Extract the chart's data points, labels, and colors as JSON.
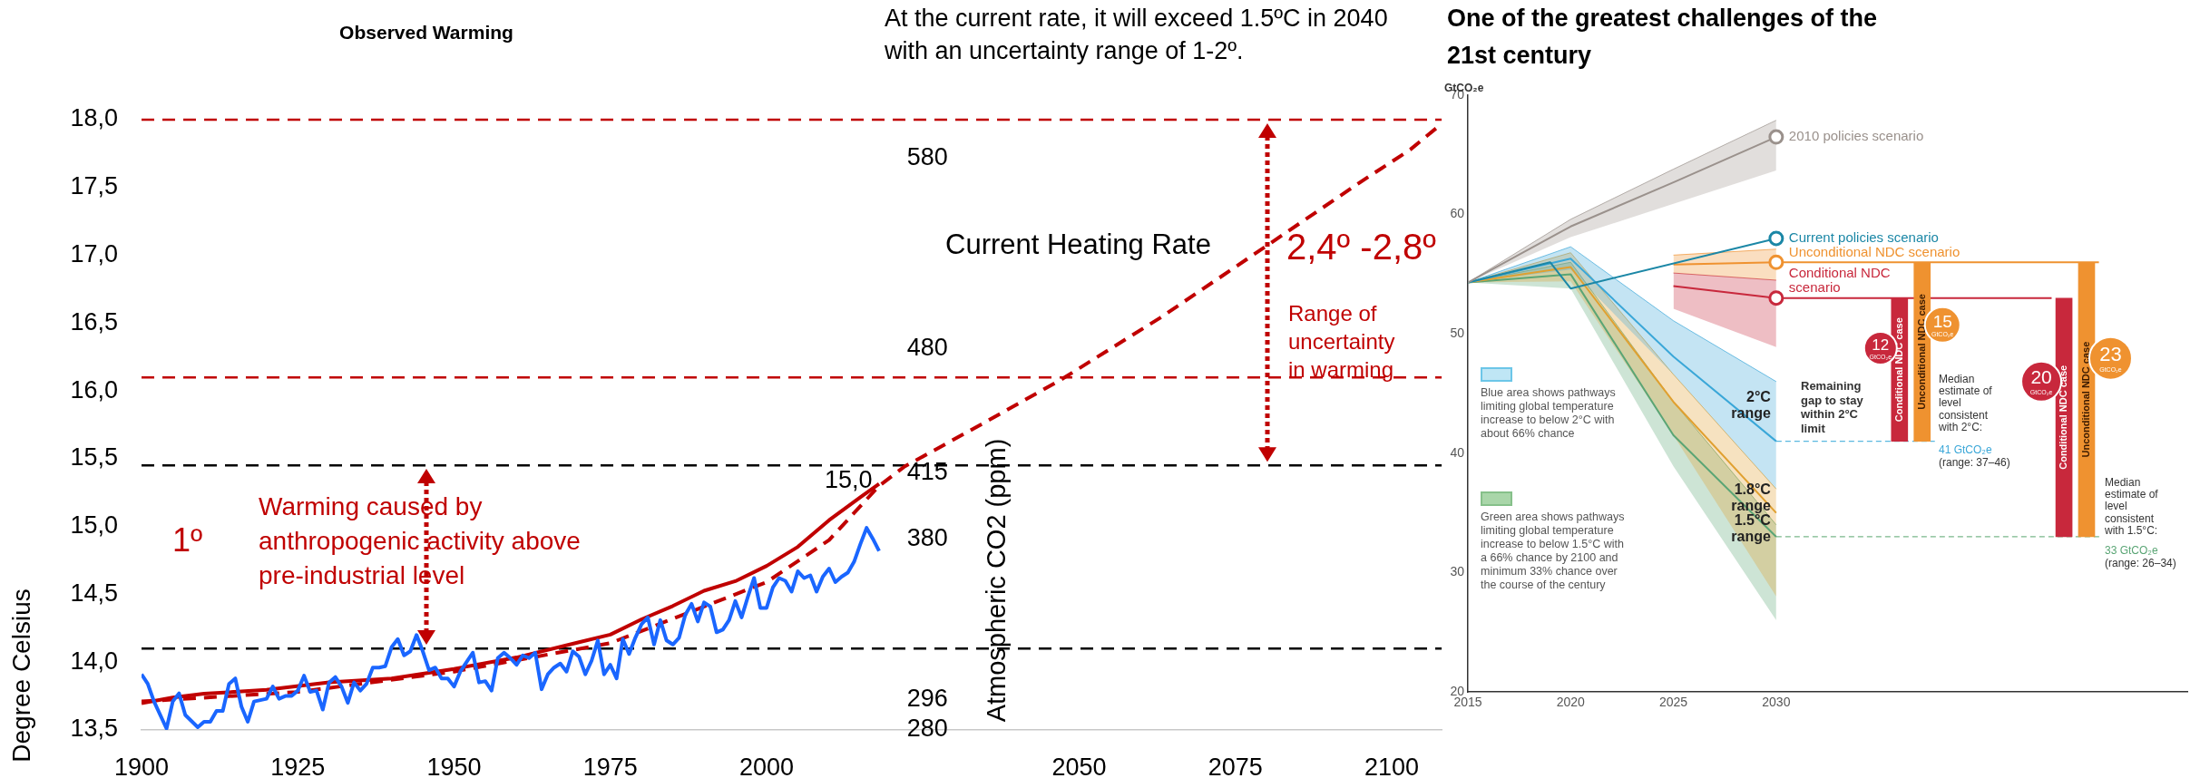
{
  "chart_data": [
    {
      "type": "line",
      "title": "Observed Warming",
      "ylabel": "Degree Celsius",
      "y2label": "Atmospheric CO2 (ppm)",
      "xlim": [
        1900,
        2108
      ],
      "xticks": [
        1900,
        1925,
        1950,
        1975,
        2000,
        2050,
        2075,
        2100
      ],
      "ylim": [
        13.5,
        18.0
      ],
      "yticks": [
        {
          "value": 13.5,
          "label": "13,5"
        },
        {
          "value": 14,
          "label": "14,0"
        },
        {
          "value": 14.5,
          "label": "14,5"
        },
        {
          "value": 15,
          "label": "15,0"
        },
        {
          "value": 15.5,
          "label": "15,5"
        },
        {
          "value": 16,
          "label": "16,0"
        },
        {
          "value": 16.5,
          "label": "16,5"
        },
        {
          "value": 17,
          "label": "17,0"
        },
        {
          "value": 17.5,
          "label": "17,5"
        },
        {
          "value": 18,
          "label": "18,0"
        }
      ],
      "y2lim": [
        280,
        600
      ],
      "y2ticks": [
        280,
        296,
        380,
        415,
        480,
        580
      ],
      "series": [
        {
          "color": "#1a66ff",
          "x": [
            1900,
            1901,
            1902,
            1904,
            1905,
            1906,
            1907,
            1909,
            1910,
            1911,
            1912,
            1913,
            1914,
            1915,
            1916,
            1917,
            1918,
            1920,
            1921,
            1922,
            1923,
            1924,
            1925,
            1926,
            1927,
            1928,
            1929,
            1930,
            1931,
            1932,
            1933,
            1934,
            1935,
            1936,
            1937,
            1938,
            1939,
            1940,
            1941,
            1942,
            1943,
            1944,
            1945,
            1946,
            1947,
            1948,
            1949,
            1950,
            1951,
            1952,
            1953,
            1954,
            1955,
            1956,
            1957,
            1958,
            1959,
            1960,
            1961,
            1962,
            1963,
            1964,
            1965,
            1966,
            1967,
            1968,
            1969,
            1970,
            1971,
            1972,
            1973,
            1974,
            1975,
            1976,
            1977,
            1978,
            1979,
            1980,
            1981,
            1982,
            1983,
            1984,
            1985,
            1986,
            1987,
            1988,
            1989,
            1990,
            1991,
            1992,
            1993,
            1994,
            1995,
            1996,
            1997,
            1998,
            1999,
            2000,
            2001,
            2002,
            2003,
            2004,
            2005,
            2006,
            2007,
            2008,
            2009,
            2010,
            2011,
            2012,
            2013,
            2014,
            2015,
            2016,
            2017,
            2018
          ],
          "values": [
            13.91,
            13.84,
            13.71,
            13.51,
            13.71,
            13.77,
            13.61,
            13.52,
            13.56,
            13.56,
            13.64,
            13.64,
            13.84,
            13.88,
            13.67,
            13.56,
            13.71,
            13.73,
            13.82,
            13.73,
            13.75,
            13.75,
            13.79,
            13.9,
            13.78,
            13.79,
            13.65,
            13.85,
            13.89,
            13.82,
            13.7,
            13.85,
            13.79,
            13.84,
            13.96,
            13.96,
            13.97,
            14.11,
            14.17,
            14.05,
            14.08,
            14.2,
            14.08,
            13.94,
            13.96,
            13.88,
            13.88,
            13.82,
            13.93,
            14.0,
            14.07,
            13.85,
            13.86,
            13.79,
            14.03,
            14.07,
            14.03,
            13.98,
            14.05,
            14.03,
            14.07,
            13.8,
            13.91,
            13.96,
            13.99,
            13.93,
            14.08,
            14.04,
            13.91,
            14.01,
            14.16,
            13.91,
            13.98,
            13.88,
            14.17,
            14.06,
            14.18,
            14.28,
            14.33,
            14.13,
            14.31,
            14.16,
            14.13,
            14.18,
            14.35,
            14.43,
            14.3,
            14.44,
            14.41,
            14.22,
            14.24,
            14.31,
            14.45,
            14.33,
            14.48,
            14.62,
            14.4,
            14.4,
            14.55,
            14.62,
            14.6,
            14.52,
            14.67,
            14.62,
            14.64,
            14.52,
            14.63,
            14.69,
            14.59,
            14.63,
            14.66,
            14.74,
            14.87,
            14.99,
            14.91,
            14.82
          ]
        },
        {
          "color": "#c00000",
          "axis": "y2",
          "x": [
            1900,
            1905,
            1910,
            1920,
            1930,
            1940,
            1950,
            1960,
            1970,
            1975,
            1980,
            1985,
            1990,
            1995,
            2000,
            2005,
            2010,
            2015,
            2018
          ],
          "values": [
            294,
            297,
            299,
            301,
            305,
            307,
            312,
            318,
            326,
            330,
            338,
            345,
            353,
            358,
            366,
            376,
            390,
            402,
            409
          ]
        },
        {
          "name": "Current Heating Rate",
          "color": "#c00000",
          "line_style": "dashed",
          "x": [
            1900,
            1925,
            1950,
            1975,
            2000,
            2010,
            2018,
            2022,
            2035,
            2047,
            2063,
            2080,
            2095,
            2103,
            2108
          ],
          "values": [
            13.71,
            13.78,
            13.93,
            14.14,
            14.59,
            14.9,
            15.3,
            15.44,
            15.77,
            16.08,
            16.54,
            17.07,
            17.54,
            17.78,
            17.97
          ]
        }
      ],
      "ref_lines": [
        {
          "axis": "y",
          "value": 18.0,
          "color": "#c00000",
          "line_style": "dashed"
        },
        {
          "axis": "y",
          "value": 16.1,
          "color": "#c00000",
          "line_style": "dashed"
        },
        {
          "axis": "y",
          "value": 15.45,
          "color": "#000000",
          "line_style": "dashed"
        },
        {
          "axis": "y",
          "value": 14.1,
          "color": "#000000",
          "line_style": "dashed"
        }
      ],
      "annotations": [
        "At the current rate, it will exceed 1.5ºC in 2040 with an uncertainty range of 1-2º.",
        "1º",
        "Warming caused by anthropogenic activity above pre-industrial level",
        "2,4º -2,8º",
        "Range of uncertainty in warming",
        {
          "text": "15,0",
          "x": 2016,
          "y": 14.99
        }
      ]
    },
    {
      "type": "line",
      "title": "One of the greatest challenges of the 21st century",
      "ylabel": "GtCO₂e",
      "xlim": [
        2015,
        2050
      ],
      "xticks": [
        2015,
        2020,
        2025,
        2030
      ],
      "ylim": [
        20,
        70
      ],
      "yticks": [
        20,
        30,
        40,
        50,
        60,
        70
      ],
      "series": [
        {
          "name": "2010 policies scenario",
          "color": "#9a918c",
          "x": [
            2015,
            2020,
            2025,
            2030
          ],
          "values": [
            54.3,
            59.0,
            62.7,
            66.5
          ],
          "lower": [
            54.3,
            58.1,
            60.9,
            63.7
          ],
          "upper": [
            54.3,
            59.6,
            63.8,
            67.9
          ]
        },
        {
          "name": "Current policies scenario",
          "color": "#1b87a6",
          "x": [
            2015,
            2019,
            2020,
            2030
          ],
          "values": [
            54.3,
            56.0,
            53.8,
            58.0
          ]
        },
        {
          "name": "Unconditional NDC scenario",
          "color": "#ef9230",
          "x": [
            2025,
            2030,
            2045.7
          ],
          "values": [
            55.8,
            56,
            56
          ],
          "lower": [
            55.1,
            54.5,
            null
          ],
          "upper": [
            56.6,
            57.1,
            null
          ]
        },
        {
          "name": "Conditional NDC scenario",
          "color": "#c8283c",
          "x": [
            2025,
            2030,
            2043.4
          ],
          "values": [
            54.0,
            53,
            53
          ],
          "lower": [
            52.1,
            48.9,
            null
          ],
          "upper": [
            55.1,
            54.5,
            null
          ]
        },
        {
          "name": "2°C range",
          "color": "#3aa7d8",
          "x": [
            2015,
            2020,
            2025,
            2030
          ],
          "values": [
            54.3,
            56.3,
            48.1,
            41
          ],
          "lower": [
            54.3,
            55.4,
            46.6,
            37
          ],
          "upper": [
            54.3,
            57.3,
            51.1,
            46
          ]
        },
        {
          "name": "1.8°C range",
          "color": "#e0a030",
          "x": [
            2015,
            2020,
            2025,
            2030
          ],
          "values": [
            54.3,
            55.6,
            44.3,
            35
          ],
          "lower": [
            54.3,
            54.4,
            41.5,
            28
          ],
          "upper": [
            54.3,
            56.8,
            46.6,
            37
          ]
        },
        {
          "name": "1.5°C range",
          "color": "#5aa575",
          "x": [
            2015,
            2020,
            2025,
            2030
          ],
          "values": [
            54.3,
            55.0,
            41.5,
            33
          ],
          "lower": [
            54.3,
            53.8,
            38.9,
            26
          ],
          "upper": [
            54.3,
            56.0,
            44.3,
            34
          ]
        },
        {
          "type": "scatter",
          "marker": "circle",
          "x": [
            2030,
            2030,
            2030,
            2030
          ],
          "values": [
            66.5,
            58.0,
            56,
            53
          ],
          "colors": [
            "#9a918c",
            "#1b87a6",
            "#ef9230",
            "#c8283c"
          ]
        },
        {
          "type": "bar",
          "name": "Conditional NDC case",
          "color": "#c8283c",
          "x": [
            2036,
            2044
          ],
          "base": [
            41,
            33
          ],
          "values": [
            12,
            20
          ],
          "value_labels": [
            "12 GtCO₂e",
            "20 GtCO₂e"
          ]
        },
        {
          "type": "bar",
          "name": "Unconditional NDC case",
          "color": "#ef9230",
          "x": [
            2037.1,
            2045.1
          ],
          "base": [
            41,
            33
          ],
          "values": [
            15,
            23
          ],
          "value_labels": [
            "15 GtCO₂e",
            "23 GtCO₂e"
          ]
        }
      ],
      "ref_lines": [
        {
          "axis": "y",
          "value": 41,
          "color": "#5ab8e0",
          "line_style": "dashed"
        },
        {
          "axis": "y",
          "value": 33,
          "color": "#7ab88a",
          "line_style": "dashed"
        }
      ],
      "annotations": [
        "Blue area shows pathways limiting global temperature increase to below 2°C with about 66% chance",
        "Green area shows pathways limiting global temperature increase to below 1.5°C with a 66% chance by 2100 and minimum 33% chance over the course of the century",
        "Remaining gap to stay within 2°C limit",
        "Median estimate of level consistent with 2°C:",
        "41 GtCO₂e",
        "(range: 37–46)",
        "Median estimate of level consistent with 1.5°C:",
        "33 GtCO₂e",
        "(range: 26–34)"
      ]
    }
  ]
}
